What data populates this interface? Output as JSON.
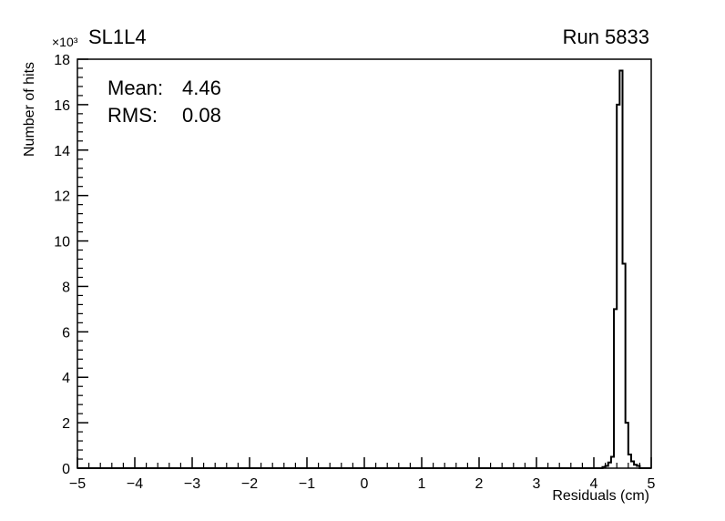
{
  "chart_data": {
    "type": "bar",
    "style": "step-histogram-outline",
    "title_left": "SL1L4",
    "title_right": "Run 5833",
    "xlabel": "Residuals (cm)",
    "ylabel": "Number of hits",
    "y_axis_multiplier": "×10³",
    "xlim": [
      -5,
      5
    ],
    "ylim": [
      0,
      18
    ],
    "x_major_tick_step": 1,
    "x_minor_per_major": 5,
    "y_major_tick_step": 2,
    "y_minor_per_major": 5,
    "grid": false,
    "legend": "none",
    "background_color": "#ffffff",
    "line_color": "#000000",
    "stats": [
      {
        "label": "Mean:",
        "value": "4.46"
      },
      {
        "label": "RMS:",
        "value": "0.08"
      }
    ],
    "histogram": {
      "values_unit": "1e3 hits",
      "bin_width": 0.05,
      "first_bin_x": 4.15,
      "counts_k": [
        0.05,
        0.1,
        0.25,
        0.5,
        7.0,
        16.0,
        17.5,
        9.0,
        2.0,
        0.6,
        0.3,
        0.15,
        0.1
      ]
    }
  }
}
